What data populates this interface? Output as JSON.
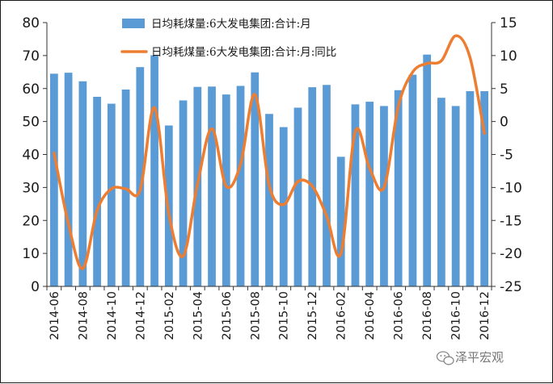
{
  "colors": {
    "bar": "#5b9bd5",
    "line": "#ed7d31",
    "axis": "#333333",
    "text": "#1a1a1a",
    "watermark": "#777777"
  },
  "watermark": {
    "text": "泽平宏观",
    "icon": "wechat-icon"
  },
  "chart_data": {
    "type": "bar",
    "title": "",
    "xlabel": "",
    "ylabel": "",
    "y2label": "",
    "legend_position": "top",
    "grid": false,
    "categories": [
      "2014-06",
      "2014-07",
      "2014-08",
      "2014-09",
      "2014-10",
      "2014-11",
      "2014-12",
      "2015-01",
      "2015-02",
      "2015-03",
      "2015-04",
      "2015-05",
      "2015-06",
      "2015-07",
      "2015-08",
      "2015-09",
      "2015-10",
      "2015-11",
      "2015-12",
      "2016-01",
      "2016-02",
      "2016-03",
      "2016-04",
      "2016-05",
      "2016-06",
      "2016-07",
      "2016-08",
      "2016-09",
      "2016-10",
      "2016-11",
      "2016-12"
    ],
    "xtick_labels": [
      "2014-06",
      "2014-08",
      "2014-10",
      "2014-12",
      "2015-02",
      "2015-04",
      "2015-06",
      "2015-08",
      "2015-10",
      "2015-12",
      "2016-02",
      "2016-04",
      "2016-06",
      "2016-08",
      "2016-10",
      "2016-12"
    ],
    "ylim": [
      0,
      80
    ],
    "yticks": [
      0,
      10,
      20,
      30,
      40,
      50,
      60,
      70,
      80
    ],
    "y2lim": [
      -25,
      15
    ],
    "y2ticks": [
      -25,
      -20,
      -15,
      -10,
      -5,
      0,
      5,
      10,
      15
    ],
    "series": [
      {
        "name": "日均耗煤量:6大发电集团:合计:月",
        "type": "bar",
        "axis": "left",
        "values": [
          64.5,
          64.8,
          62.2,
          57.5,
          55.4,
          59.7,
          66.5,
          70.1,
          48.8,
          56.4,
          60.5,
          60.6,
          58.2,
          60.8,
          64.9,
          52.3,
          48.3,
          54.2,
          60.4,
          61.1,
          39.3,
          55.2,
          56.0,
          54.7,
          59.5,
          64.2,
          70.3,
          57.2,
          54.7,
          59.2,
          59.2
        ]
      },
      {
        "name": "日均耗煤量:6大发电集团:合计:月:同比",
        "type": "line",
        "axis": "right",
        "values": [
          -4.8,
          -15.5,
          -22.3,
          -13.5,
          -10.2,
          -10.2,
          -10.4,
          2.1,
          -14.0,
          -20.4,
          -9.5,
          -1.1,
          -9.8,
          -6.5,
          4.1,
          -9.7,
          -12.6,
          -9.1,
          -9.8,
          -14.3,
          -20.0,
          -1.5,
          -7.1,
          -10.0,
          2.3,
          7.5,
          8.8,
          9.2,
          13.0,
          9.7,
          -1.8
        ]
      }
    ]
  }
}
